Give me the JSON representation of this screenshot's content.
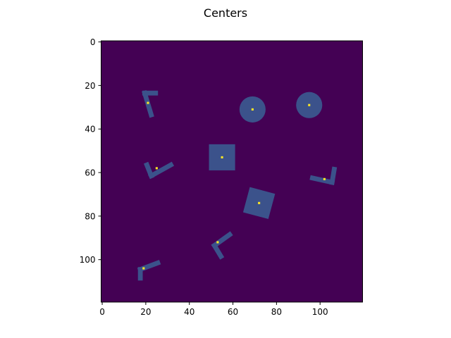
{
  "chart_data": {
    "type": "heatmap",
    "title": "Centers",
    "xlabel": "",
    "ylabel": "",
    "xlim": [
      0,
      120
    ],
    "ylim": [
      120,
      0
    ],
    "x_ticks": [
      0,
      20,
      40,
      60,
      80,
      100
    ],
    "y_ticks": [
      0,
      20,
      40,
      60,
      80,
      100
    ],
    "grid": false,
    "colors": {
      "background": "#440154",
      "shape": "#3b528b",
      "center": "#fde725"
    },
    "shapes": [
      {
        "kind": "L",
        "name": "L1",
        "center": [
          21,
          28
        ],
        "arm_a": [
          [
            19.5,
            23.5
          ],
          [
            24.5,
            23.5
          ]
        ],
        "arm_b": [
          [
            19.5,
            23.5
          ],
          [
            22.5,
            33.5
          ]
        ]
      },
      {
        "kind": "circle",
        "name": "circle1",
        "center": [
          69,
          31
        ],
        "radius": 6
      },
      {
        "kind": "circle",
        "name": "circle2",
        "center": [
          95,
          29
        ],
        "radius": 6
      },
      {
        "kind": "square",
        "name": "square1",
        "center": [
          55,
          53
        ],
        "side": 12,
        "angle": 0
      },
      {
        "kind": "L",
        "name": "L2",
        "center": [
          25,
          58
        ],
        "arm_a": [
          [
            22.5,
            61.5
          ],
          [
            31.5,
            56.5
          ]
        ],
        "arm_b": [
          [
            22.5,
            61.5
          ],
          [
            20.5,
            56.5
          ]
        ]
      },
      {
        "kind": "L",
        "name": "L3",
        "center": [
          102,
          63
        ],
        "arm_a": [
          [
            105.5,
            64.5
          ],
          [
            96.5,
            62.5
          ]
        ],
        "arm_b": [
          [
            105.5,
            64.5
          ],
          [
            106.5,
            58.5
          ]
        ]
      },
      {
        "kind": "square",
        "name": "square2",
        "center": [
          72,
          74
        ],
        "side": 12,
        "angle": 15
      },
      {
        "kind": "L",
        "name": "L4",
        "center": [
          53,
          92
        ],
        "arm_a": [
          [
            51.5,
            93.5
          ],
          [
            58.5,
            88.5
          ]
        ],
        "arm_b": [
          [
            51.5,
            93.5
          ],
          [
            54.5,
            98.5
          ]
        ]
      },
      {
        "kind": "L",
        "name": "L5",
        "center": [
          19,
          104
        ],
        "arm_a": [
          [
            17.5,
            104.5
          ],
          [
            25.5,
            101.5
          ]
        ],
        "arm_b": [
          [
            17.5,
            104.5
          ],
          [
            17.5,
            108.5
          ]
        ]
      }
    ]
  }
}
